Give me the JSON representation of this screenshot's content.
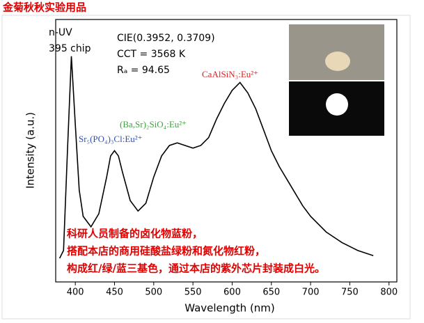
{
  "chart_data": {
    "type": "line",
    "title": "金菊秋秋实验用品",
    "x_label": "Wavelength (nm)",
    "y_label": "Intensity (a.u.)",
    "xlim": [
      375,
      810
    ],
    "ylim": [
      0,
      1
    ],
    "xticks": [
      400,
      450,
      500,
      550,
      600,
      650,
      700,
      750,
      800
    ],
    "annotations": {
      "chip": [
        "n-UV",
        "395 chip"
      ],
      "color": [
        "CIE(0.3952, 0.3709)",
        "CCT = 3568 K",
        "Rₐ = 94.65"
      ],
      "red_phosphor": "CaAlSiN₃:Eu²⁺",
      "green_phosphor": "(Ba,Sr)₂SiO₄:Eu²⁺",
      "blue_phosphor": "Sr₅(PO₄)₃Cl:Eu²⁺",
      "note": [
        "科研人员制备的卤化物蓝粉，",
        "搭配本店的商用硅酸盐绿粉和氮化物红粉，",
        "构成红/绿/蓝三基色，通过本店的紫外芯片封装成白光。"
      ]
    },
    "series": [
      {
        "name": "Intensity",
        "color": "#000000",
        "x": [
          380,
          385,
          390,
          395,
          400,
          405,
          410,
          420,
          430,
          440,
          445,
          450,
          455,
          460,
          470,
          480,
          490,
          500,
          510,
          520,
          530,
          540,
          550,
          560,
          570,
          580,
          590,
          600,
          610,
          620,
          630,
          640,
          650,
          660,
          670,
          680,
          690,
          700,
          720,
          740,
          760,
          780
        ],
        "values": [
          0.09,
          0.12,
          0.5,
          0.86,
          0.6,
          0.35,
          0.25,
          0.21,
          0.26,
          0.4,
          0.48,
          0.5,
          0.48,
          0.42,
          0.31,
          0.27,
          0.3,
          0.4,
          0.48,
          0.52,
          0.53,
          0.52,
          0.51,
          0.52,
          0.55,
          0.62,
          0.68,
          0.73,
          0.76,
          0.72,
          0.66,
          0.58,
          0.5,
          0.44,
          0.39,
          0.34,
          0.29,
          0.25,
          0.19,
          0.15,
          0.12,
          0.1
        ]
      }
    ]
  }
}
